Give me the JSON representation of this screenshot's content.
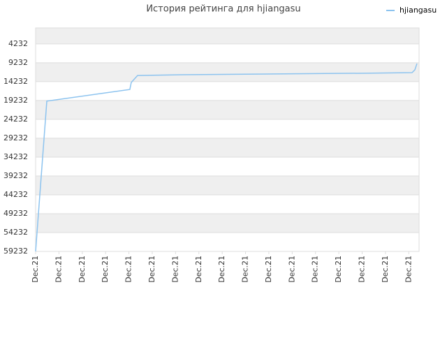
{
  "chart_data": {
    "type": "line",
    "title": "История рейтинга для hjiangasu",
    "invert_y": true,
    "grid": true,
    "legend": "top-right",
    "ylim": [
      0,
      59232
    ],
    "yticks": [
      4232,
      9232,
      14232,
      19232,
      24232,
      29232,
      34232,
      39232,
      44232,
      49232,
      54232,
      59232
    ],
    "xlim": [
      0,
      16.44
    ],
    "xticks": [
      {
        "value": 0,
        "label": "Dec.21"
      },
      {
        "value": 1,
        "label": "Dec.21"
      },
      {
        "value": 2,
        "label": "Dec.21"
      },
      {
        "value": 3,
        "label": "Dec.21"
      },
      {
        "value": 4,
        "label": "Dec.21"
      },
      {
        "value": 5,
        "label": "Dec.21"
      },
      {
        "value": 6,
        "label": "Dec.21"
      },
      {
        "value": 7,
        "label": "Dec.21"
      },
      {
        "value": 8,
        "label": "Dec.21"
      },
      {
        "value": 9,
        "label": "Dec.21"
      },
      {
        "value": 10,
        "label": "Dec.21"
      },
      {
        "value": 11,
        "label": "Dec.21"
      },
      {
        "value": 12,
        "label": "Dec.21"
      },
      {
        "value": 13,
        "label": "Dec.21"
      },
      {
        "value": 14,
        "label": "Dec.21"
      },
      {
        "value": 15,
        "label": "Dec.21"
      },
      {
        "value": 16,
        "label": "Dec.21"
      }
    ],
    "series": [
      {
        "name": "hjiangasu",
        "color": "#8cc3ef",
        "x": [
          0,
          0.48,
          4.04,
          4.1,
          4.37,
          6.32,
          10.21,
          14.1,
          16.14,
          16.26,
          16.35
        ],
        "values": [
          59232,
          19400,
          16300,
          14450,
          12600,
          12400,
          12200,
          12000,
          11850,
          11100,
          9450
        ]
      }
    ]
  }
}
